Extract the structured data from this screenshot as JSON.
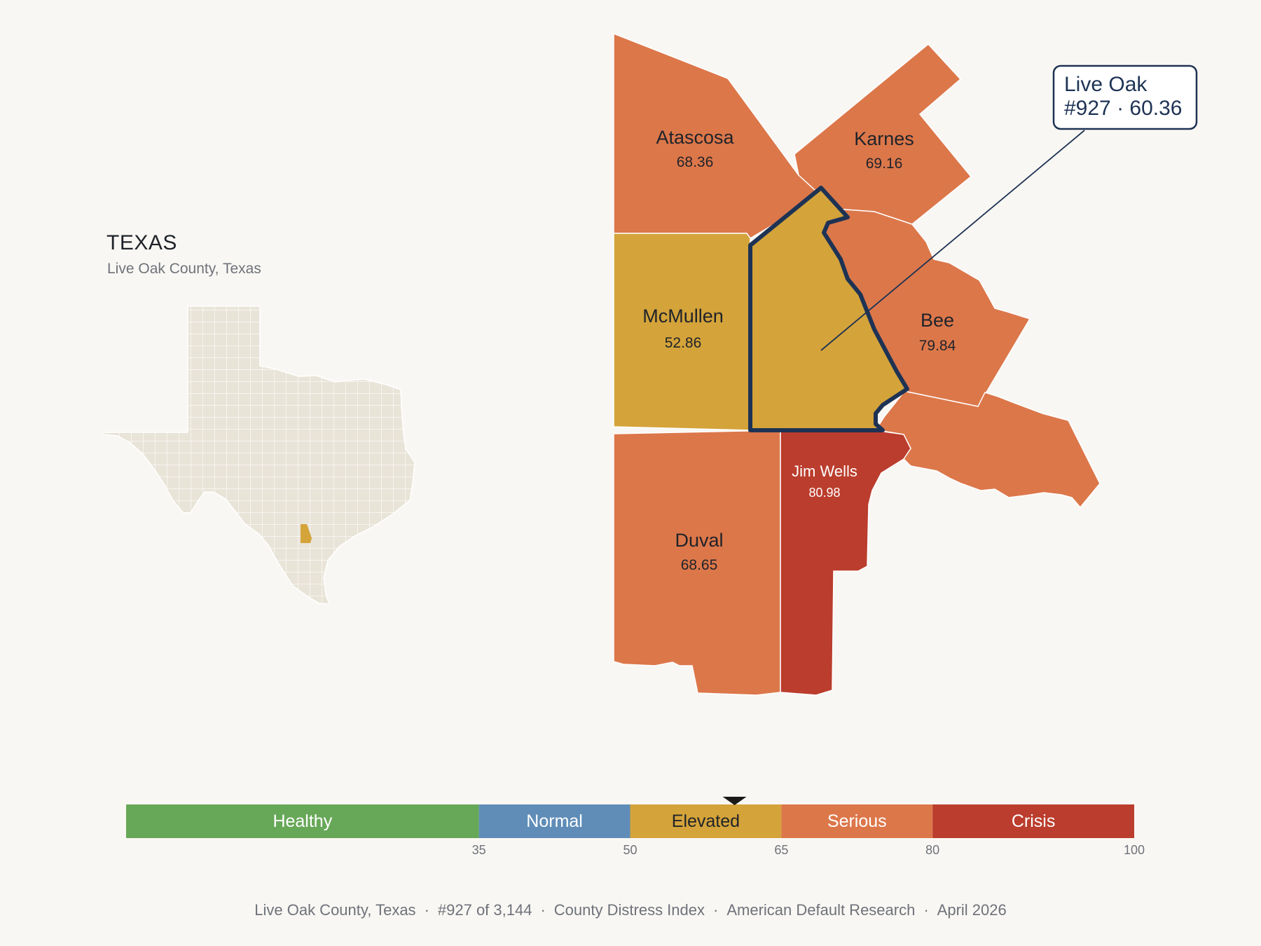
{
  "inset": {
    "title": "TEXAS",
    "subtitle": "Live Oak County, Texas"
  },
  "highlight": {
    "name": "Live Oak",
    "rank": "#927",
    "score": "60.36",
    "callout_line1": "Live Oak",
    "callout_line2": "#927 · 60.36",
    "color": "#d4a33a",
    "outline_color": "#1e3354"
  },
  "counties": [
    {
      "name": "Atascosa",
      "value": "68.36",
      "category": "Serious"
    },
    {
      "name": "Karnes",
      "value": "69.16",
      "category": "Serious"
    },
    {
      "name": "McMullen",
      "value": "52.86",
      "category": "Elevated"
    },
    {
      "name": "Bee",
      "value": "79.84",
      "category": "Serious"
    },
    {
      "name": "Jim Wells",
      "value": "80.98",
      "category": "Crisis"
    },
    {
      "name": "Duval",
      "value": "68.65",
      "category": "Serious"
    }
  ],
  "legend": {
    "min": 0,
    "max": 100,
    "marker_value": 60.36,
    "bins": [
      {
        "label": "Healthy",
        "from": 0,
        "to": 35,
        "color": "#67a858",
        "text_color": "#ffffff"
      },
      {
        "label": "Normal",
        "from": 35,
        "to": 50,
        "color": "#5f8db8",
        "text_color": "#ffffff"
      },
      {
        "label": "Elevated",
        "from": 50,
        "to": 65,
        "color": "#d4a33a",
        "text_color": "#1f2329"
      },
      {
        "label": "Serious",
        "from": 65,
        "to": 80,
        "color": "#dc774a",
        "text_color": "#ffffff"
      },
      {
        "label": "Crisis",
        "from": 80,
        "to": 100,
        "color": "#bb3d2d",
        "text_color": "#ffffff"
      }
    ],
    "ticks": [
      "35",
      "50",
      "65",
      "80",
      "100"
    ]
  },
  "footer": {
    "county": "Live Oak County, Texas",
    "rank": "#927 of 3,144",
    "index": "County Distress Index",
    "source": "American Default Research",
    "date": "April 2026"
  },
  "colors": {
    "background": "#f9f7f3",
    "serious": "#dc774a",
    "crisis": "#bb3d2d",
    "elevated": "#d4a33a",
    "texas_fill": "#e9e4d8"
  }
}
